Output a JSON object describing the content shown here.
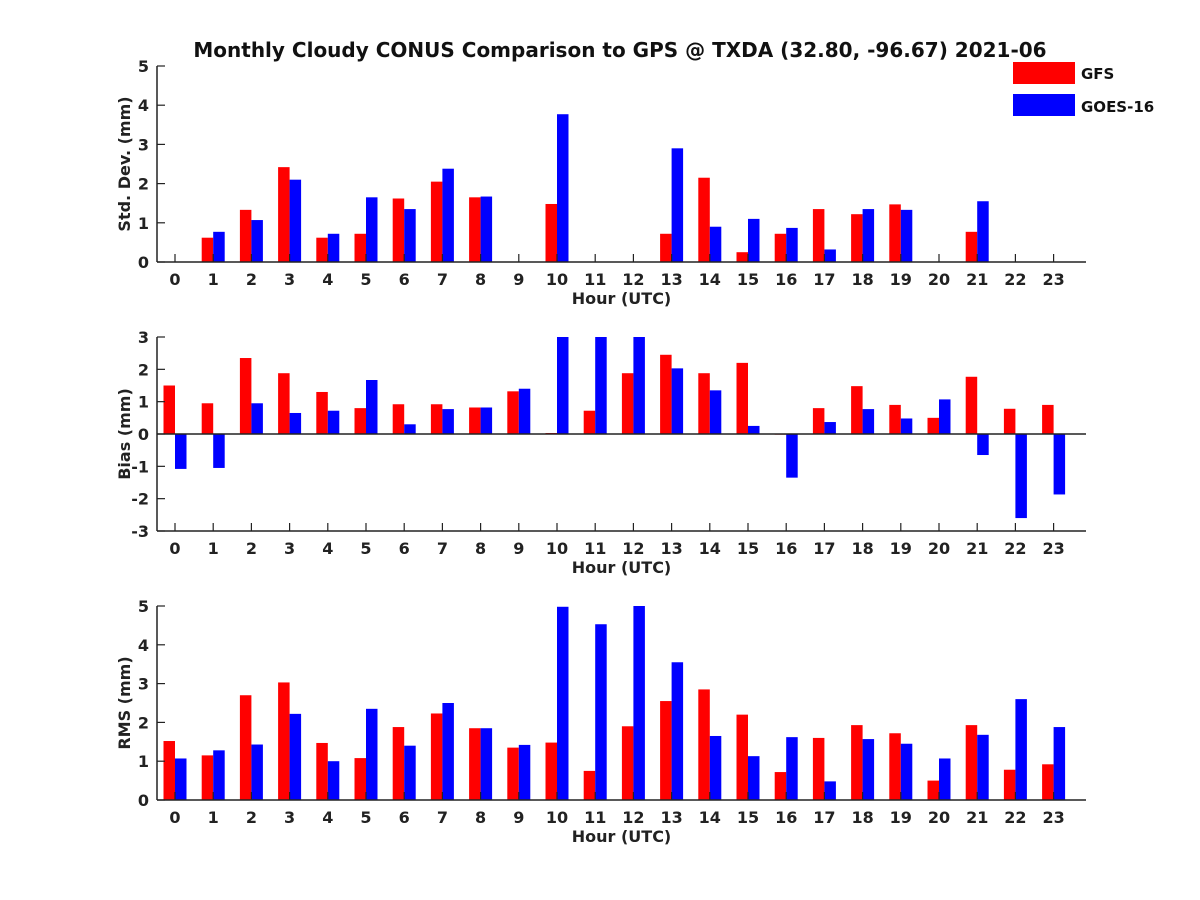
{
  "figure_title": "Monthly Cloudy CONUS Comparison to GPS @ TXDA (32.80, -96.67) 2021-06",
  "colors": {
    "GFS": "#ff0000",
    "GOES-16": "#0000ff"
  },
  "legend": [
    "GFS",
    "GOES-16"
  ],
  "chart_data": [
    {
      "type": "bar",
      "title": "",
      "xlabel": "Hour (UTC)",
      "ylabel": "Std. Dev. (mm)",
      "ylim": [
        0,
        5
      ],
      "yticks": [
        0,
        1,
        2,
        3,
        4,
        5
      ],
      "categories": [
        "0",
        "1",
        "2",
        "3",
        "4",
        "5",
        "6",
        "7",
        "8",
        "9",
        "10",
        "11",
        "12",
        "13",
        "14",
        "15",
        "16",
        "17",
        "18",
        "19",
        "20",
        "21",
        "22",
        "23"
      ],
      "series": [
        {
          "name": "GFS",
          "values": [
            0,
            0.62,
            1.33,
            2.42,
            0.62,
            0.72,
            1.62,
            2.05,
            1.65,
            0,
            1.48,
            0,
            0,
            0.72,
            2.15,
            0.25,
            0.72,
            1.35,
            1.22,
            1.47,
            0,
            0.77,
            0,
            0
          ]
        },
        {
          "name": "GOES-16",
          "values": [
            0,
            0.77,
            1.07,
            2.1,
            0.72,
            1.65,
            1.35,
            2.38,
            1.67,
            0,
            3.77,
            0,
            0,
            2.9,
            0.9,
            1.1,
            0.87,
            0.32,
            1.35,
            1.33,
            0,
            1.55,
            0,
            0
          ]
        }
      ]
    },
    {
      "type": "bar",
      "title": "",
      "xlabel": "Hour (UTC)",
      "ylabel": "Bias (mm)",
      "ylim": [
        -3,
        3
      ],
      "yticks": [
        -3,
        -2,
        -1,
        0,
        1,
        2,
        3
      ],
      "categories": [
        "0",
        "1",
        "2",
        "3",
        "4",
        "5",
        "6",
        "7",
        "8",
        "9",
        "10",
        "11",
        "12",
        "13",
        "14",
        "15",
        "16",
        "17",
        "18",
        "19",
        "20",
        "21",
        "22",
        "23"
      ],
      "series": [
        {
          "name": "GFS",
          "values": [
            1.5,
            0.95,
            2.35,
            1.88,
            1.3,
            0.8,
            0.92,
            0.92,
            0.82,
            1.32,
            0.03,
            0.72,
            1.88,
            2.45,
            1.88,
            2.2,
            -0.02,
            0.8,
            1.48,
            0.9,
            0.5,
            1.77,
            0.78,
            0.9
          ]
        },
        {
          "name": "GOES-16",
          "values": [
            -1.08,
            -1.05,
            0.95,
            0.65,
            0.72,
            1.67,
            0.3,
            0.77,
            0.82,
            1.4,
            3.0,
            3.0,
            3.0,
            2.03,
            1.35,
            0.25,
            -1.35,
            0.37,
            0.77,
            0.48,
            1.07,
            -0.65,
            -2.6,
            -1.87
          ]
        }
      ]
    },
    {
      "type": "bar",
      "title": "",
      "xlabel": "Hour (UTC)",
      "ylabel": "RMS (mm)",
      "ylim": [
        0,
        5
      ],
      "yticks": [
        0,
        1,
        2,
        3,
        4,
        5
      ],
      "categories": [
        "0",
        "1",
        "2",
        "3",
        "4",
        "5",
        "6",
        "7",
        "8",
        "9",
        "10",
        "11",
        "12",
        "13",
        "14",
        "15",
        "16",
        "17",
        "18",
        "19",
        "20",
        "21",
        "22",
        "23"
      ],
      "series": [
        {
          "name": "GFS",
          "values": [
            1.52,
            1.15,
            2.7,
            3.03,
            1.47,
            1.08,
            1.88,
            2.23,
            1.85,
            1.35,
            1.48,
            0.75,
            1.9,
            2.55,
            2.85,
            2.2,
            0.72,
            1.6,
            1.93,
            1.72,
            0.5,
            1.93,
            0.78,
            0.92
          ]
        },
        {
          "name": "GOES-16",
          "values": [
            1.07,
            1.28,
            1.43,
            2.22,
            1.0,
            2.35,
            1.4,
            2.5,
            1.85,
            1.42,
            4.98,
            4.53,
            5.0,
            3.55,
            1.65,
            1.13,
            1.62,
            0.48,
            1.57,
            1.45,
            1.07,
            1.68,
            2.6,
            1.88
          ]
        }
      ]
    }
  ]
}
